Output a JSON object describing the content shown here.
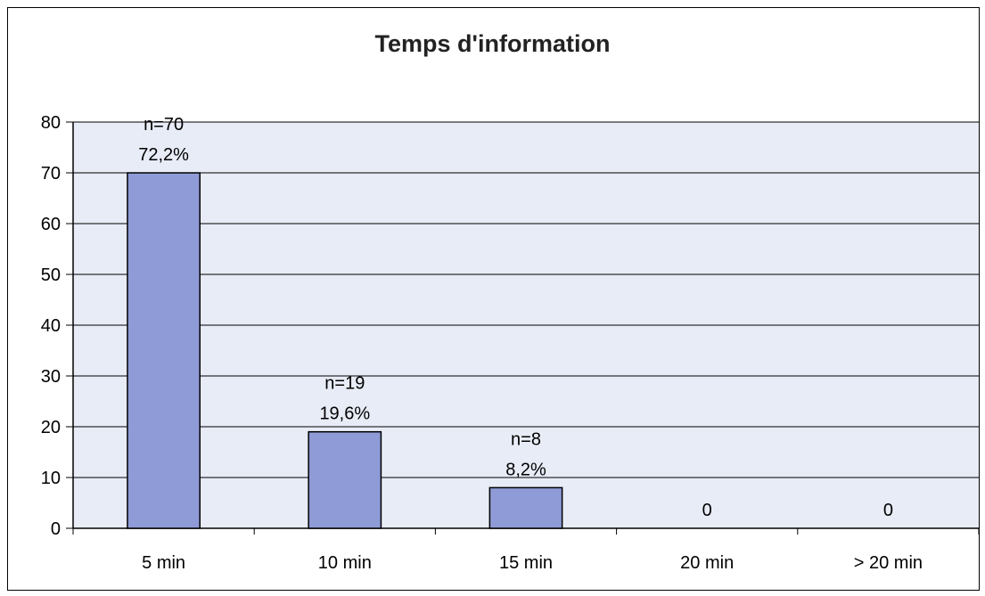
{
  "chart_data": {
    "type": "bar",
    "title": "Temps d'information",
    "categories": [
      "5 min",
      "10 min",
      "15 min",
      "20 min",
      "> 20 min"
    ],
    "values": [
      70,
      19,
      8,
      0,
      0
    ],
    "data_labels": [
      [
        "n=70",
        "72,2%"
      ],
      [
        "n=19",
        "19,6%"
      ],
      [
        "n=8",
        "8,2%"
      ],
      [
        "0"
      ],
      [
        "0"
      ]
    ],
    "ylim": [
      0,
      80
    ],
    "yticks": [
      0,
      10,
      20,
      30,
      40,
      50,
      60,
      70,
      80
    ],
    "xlabel": "",
    "ylabel": "",
    "grid": true,
    "legend": "none",
    "colors": {
      "bar": "#8e9bd6",
      "bar_stroke": "#000000",
      "plot_bg": "#e8ecf6",
      "grid": "#000000"
    }
  }
}
